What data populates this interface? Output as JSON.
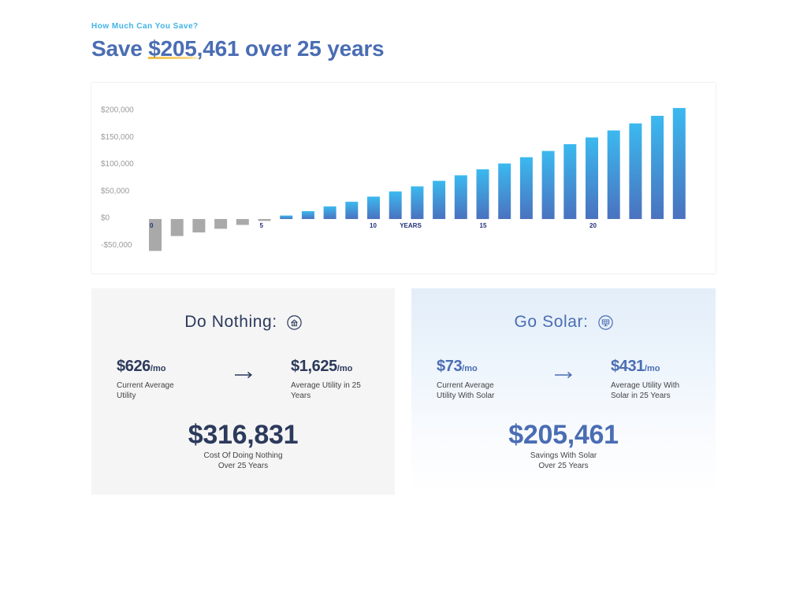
{
  "header": {
    "eyebrow": "How Much Can You Save?",
    "title_before": "Save ",
    "title_highlight": "$205,461",
    "title_after": " over 25 years"
  },
  "colors": {
    "eyebrow": "#3fb3e6",
    "brand_blue": "#4a6db3",
    "navy": "#2c3a5c",
    "highlight": "#f2bd3c",
    "bar_top": "#3bb9ef",
    "bar_bottom": "#4a72bf",
    "bar_negative": "#a9a9a9",
    "panel_gray": "#f5f5f5",
    "panel_blue": "#e3eef9"
  },
  "chart_data": {
    "type": "bar",
    "x": [
      0,
      1,
      2,
      3,
      4,
      5,
      6,
      7,
      8,
      9,
      10,
      11,
      12,
      13,
      14,
      15,
      16,
      17,
      18,
      19,
      20,
      21,
      22,
      23,
      24
    ],
    "values": [
      -59000,
      -31500,
      -24800,
      -18000,
      -10900,
      -3500,
      6500,
      14600,
      23300,
      32000,
      41500,
      51000,
      60500,
      70700,
      81000,
      92000,
      102800,
      114400,
      126000,
      138500,
      151000,
      164000,
      177000,
      191000,
      205461
    ],
    "x_tick_values": [
      0,
      5,
      10,
      15,
      20
    ],
    "x_tick_labels": [
      "0",
      "5",
      "10",
      "15",
      "20"
    ],
    "xlabel": "YEARS",
    "y_tick_values": [
      200000,
      150000,
      100000,
      50000,
      0,
      -50000
    ],
    "y_tick_labels": [
      "$200,000",
      "$150,000",
      "$100,000",
      "$50,000",
      "$0",
      "-$50,000"
    ],
    "ylim": [
      -60000,
      210000
    ],
    "grid": false
  },
  "do_nothing": {
    "title": "Do Nothing:",
    "icon": "utility-icon",
    "current": {
      "value": "$626",
      "unit": "/mo",
      "label_lines": [
        "Current Average",
        "Utility"
      ]
    },
    "future": {
      "value": "$1,625",
      "unit": "/mo",
      "label_lines": [
        "Average Utility in 25",
        "Years"
      ]
    },
    "total": {
      "value": "$316,831",
      "label_lines": [
        "Cost Of Doing Nothing",
        "Over 25 Years"
      ]
    }
  },
  "go_solar": {
    "title": "Go Solar:",
    "icon": "solar-panel-icon",
    "current": {
      "value": "$73",
      "unit": "/mo",
      "label_lines": [
        "Current Average",
        "Utility With Solar"
      ]
    },
    "future": {
      "value": "$431",
      "unit": "/mo",
      "label_lines": [
        "Average Utility With",
        "Solar in 25 Years"
      ]
    },
    "total": {
      "value": "$205,461",
      "label_lines": [
        "Savings With Solar",
        "Over 25 Years"
      ]
    }
  }
}
